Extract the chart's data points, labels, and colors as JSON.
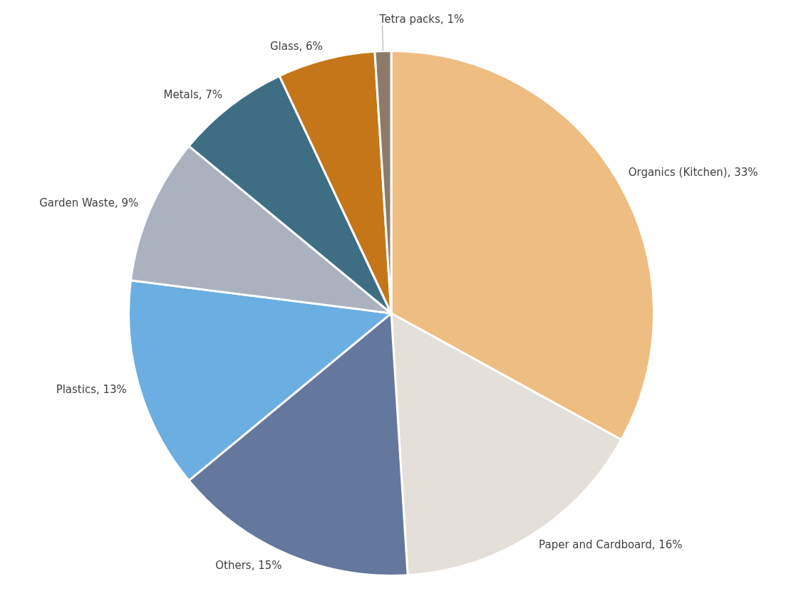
{
  "chart_data": {
    "type": "pie",
    "categories": [
      "Organics (Kitchen)",
      "Paper and Cardboard",
      "Others",
      "Plastics",
      "Garden Waste",
      "Metals",
      "Glass",
      "Tetra packs"
    ],
    "values": [
      33,
      16,
      15,
      13,
      9,
      7,
      6,
      1
    ],
    "value_labels": [
      "33%",
      "16%",
      "15%",
      "13%",
      "9%",
      "7%",
      "6%",
      "1%"
    ],
    "colors": [
      "#eebd82",
      "#e4dfd8",
      "#64779c",
      "#6aaee2",
      "#a9b2be",
      "#3e6e83",
      "#c47619",
      "#8c7b6b"
    ],
    "legend": false
  }
}
